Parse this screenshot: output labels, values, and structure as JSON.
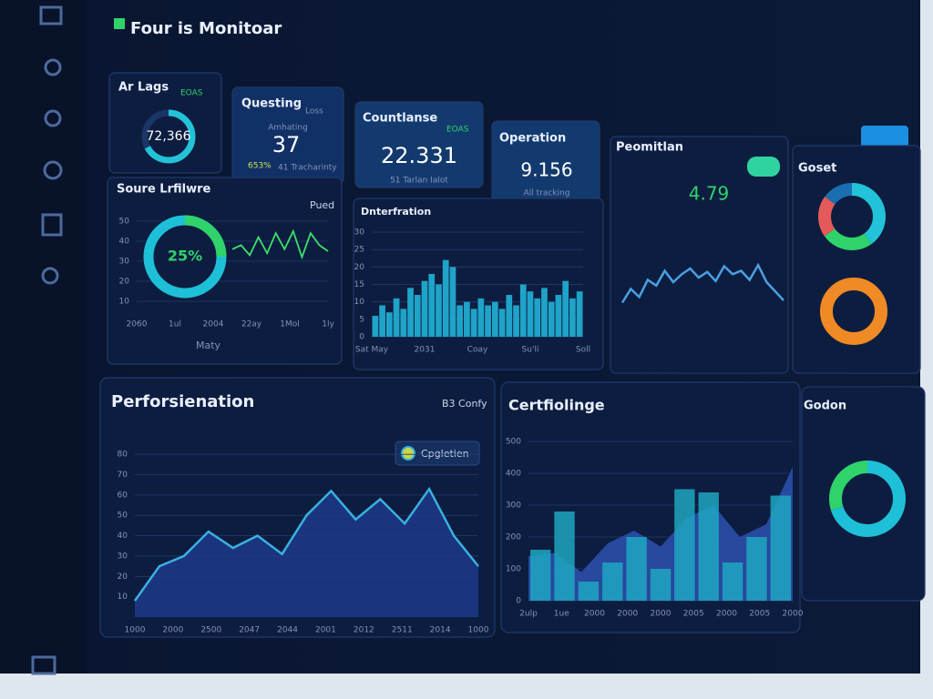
{
  "header": {
    "title": "Four is Monitoar"
  },
  "cards": [
    {
      "title": "Ar Lags",
      "tag": "EOAS",
      "value": "72,366"
    },
    {
      "title": "Questing",
      "tag": "Loss",
      "subtitle": "Amhating",
      "value": "37",
      "change": "653%",
      "note": "41 Tracharinty"
    },
    {
      "title": "Countlanse",
      "tag": "EOAS",
      "value": "22.331",
      "note": "51 Tarlan Ialot"
    },
    {
      "title": "Operation",
      "value": "9.156",
      "note": "All tracking"
    }
  ],
  "chart_data": [
    {
      "type": "gaugeline",
      "title": "Soure Lrfilwre",
      "subtitle": "Pued",
      "x_label": "Maty",
      "x_labels": [
        "2060",
        "1ul",
        "2004",
        "22ay",
        "1Mol",
        "1ly"
      ],
      "ylim": [
        5,
        55
      ],
      "yticks": [
        10,
        20,
        30,
        40,
        50
      ],
      "gauge": {
        "value": 25,
        "label": "25%"
      },
      "gauge_color": "#2fd36a",
      "trend": [
        36,
        38,
        33,
        42,
        34,
        44,
        36,
        45,
        32,
        44,
        38,
        35
      ],
      "color": "#3ee06b"
    },
    {
      "type": "bar",
      "title": "Dnterfration",
      "x_labels": [
        "Sat May",
        "2031",
        "Coay",
        "Su'li",
        "Soll"
      ],
      "ylim": [
        0,
        30
      ],
      "yticks": [
        0,
        5,
        10,
        15,
        20,
        25,
        30
      ],
      "color": "#1fa3c8",
      "values": [
        6,
        9,
        7,
        11,
        8,
        14,
        12,
        16,
        18,
        15,
        22,
        20,
        9,
        10,
        8,
        11,
        9,
        10,
        8,
        12,
        9,
        15,
        13,
        11,
        14,
        10,
        12,
        16,
        11,
        13
      ]
    },
    {
      "type": "line",
      "title": "Peomitlan",
      "value_label": "4.79",
      "ylim": [
        0,
        100
      ],
      "color": "#4aa0e0",
      "values": [
        30,
        42,
        35,
        50,
        45,
        58,
        48,
        55,
        60,
        52,
        57,
        49,
        62,
        55,
        58,
        50,
        63,
        48,
        40,
        32
      ]
    },
    {
      "type": "donut",
      "title": "Goset",
      "values": [
        40,
        25,
        20,
        15
      ],
      "colors": [
        "#22c3d8",
        "#2fd36a",
        "#e45a5a",
        "#1a6fb0"
      ]
    },
    {
      "type": "donut",
      "values": [
        100
      ],
      "colors": [
        "#f08a24"
      ]
    },
    {
      "type": "area",
      "title": "Perforsienation",
      "subtitle": "B3 Confy",
      "x_labels": [
        "1000",
        "2000",
        "2500",
        "2047",
        "2044",
        "2001",
        "2012",
        "2511",
        "2014",
        "1000"
      ],
      "ylim": [
        0,
        85
      ],
      "yticks": [
        10,
        20,
        30,
        40,
        50,
        60,
        70,
        80
      ],
      "series": [
        {
          "name": "Cpgletien",
          "color": "#3ab0e0",
          "values": [
            8,
            25,
            30,
            42,
            34,
            40,
            31,
            50,
            62,
            48,
            58,
            46,
            63,
            40,
            25
          ]
        }
      ]
    },
    {
      "type": "combo",
      "title": "Certfiolinge",
      "x_labels": [
        "2ulp",
        "1ue",
        "2000",
        "2000",
        "2000",
        "2005",
        "2000",
        "2005",
        "2000"
      ],
      "ylim": [
        0,
        500
      ],
      "yticks": [
        0,
        100,
        200,
        300,
        400,
        500
      ],
      "bars": [
        160,
        280,
        60,
        120,
        200,
        100,
        350,
        340,
        120,
        200,
        330
      ],
      "bar_color": "#1ea6c0",
      "area": [
        140,
        150,
        90,
        180,
        220,
        170,
        260,
        300,
        200,
        240,
        420
      ],
      "area_color": "#2a4fa8"
    },
    {
      "type": "donut",
      "title": "Godon",
      "values": [
        70,
        30
      ],
      "colors": [
        "#1ec0d8",
        "#2fd36a"
      ]
    }
  ]
}
